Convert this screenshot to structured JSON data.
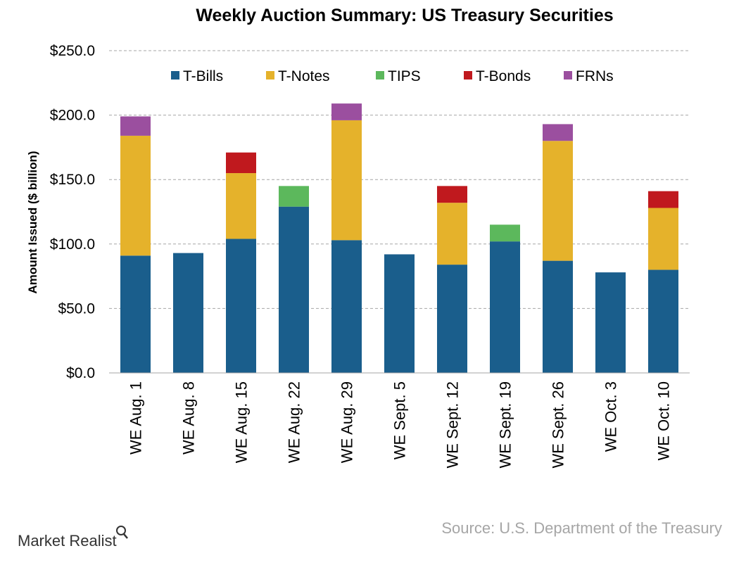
{
  "chart_data": {
    "type": "bar",
    "stacked": true,
    "title": "Weekly Auction Summary: US Treasury Securities",
    "ylabel": "Amount Issued ($ billion)",
    "xlabel": "",
    "ylim": [
      0,
      250
    ],
    "yticks": [
      "$0.0",
      "$50.0",
      "$100.0",
      "$150.0",
      "$200.0",
      "$250.0"
    ],
    "ytick_values": [
      0,
      50,
      100,
      150,
      200,
      250
    ],
    "grid": true,
    "legend_position": "top",
    "categories": [
      "WE Aug. 1",
      "WE Aug. 8",
      "WE Aug. 15",
      "WE Aug. 22",
      "WE Aug. 29",
      "WE Sept. 5",
      "WE Sept. 12",
      "WE Sept. 19",
      "WE Sept. 26",
      "WE Oct. 3",
      "WE Oct. 10"
    ],
    "series": [
      {
        "name": "T-Bills",
        "color": "#1a5e8c",
        "values": [
          91,
          93,
          104,
          129,
          103,
          92,
          84,
          102,
          87,
          78,
          80
        ]
      },
      {
        "name": "T-Notes",
        "color": "#e5b22b",
        "values": [
          93,
          0,
          51,
          0,
          93,
          0,
          48,
          0,
          93,
          0,
          48
        ]
      },
      {
        "name": "TIPS",
        "color": "#5cb85c",
        "values": [
          0,
          0,
          0,
          16,
          0,
          0,
          0,
          13,
          0,
          0,
          0
        ]
      },
      {
        "name": "T-Bonds",
        "color": "#c0191e",
        "values": [
          0,
          0,
          16,
          0,
          0,
          0,
          13,
          0,
          0,
          0,
          13
        ]
      },
      {
        "name": "FRNs",
        "color": "#9b4f9f",
        "values": [
          15,
          0,
          0,
          0,
          13,
          0,
          0,
          0,
          13,
          0,
          0
        ]
      }
    ]
  },
  "source": "Source: U.S. Department of the Treasury",
  "logo": {
    "text": "Market Realist",
    "icon": "magnifier-icon"
  }
}
